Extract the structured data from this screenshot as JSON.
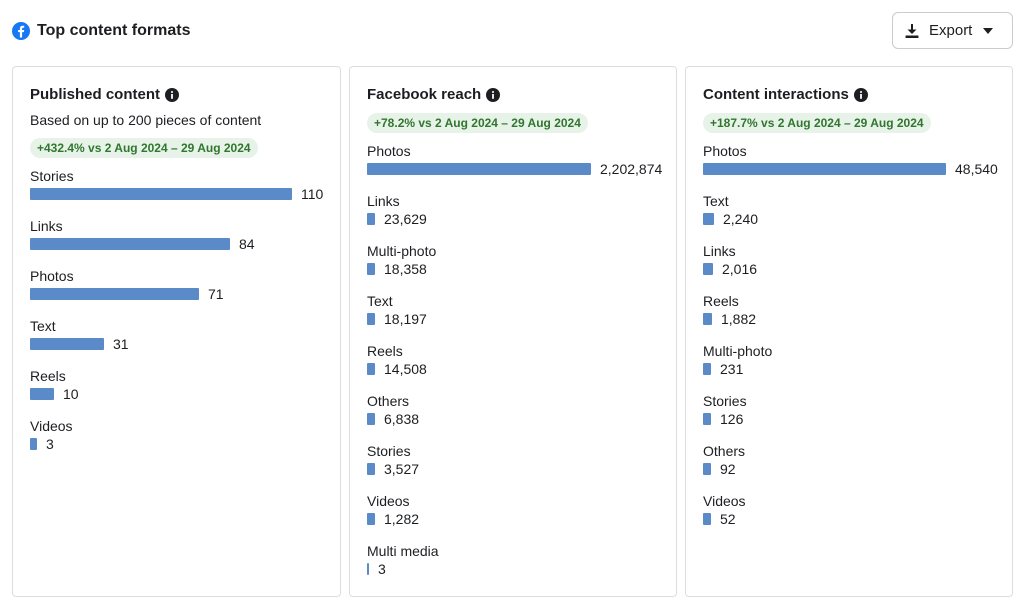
{
  "header": {
    "title": "Top content formats",
    "export_label": "Export",
    "brand_color": "#1877f2"
  },
  "cards": [
    {
      "title": "Published content",
      "subtitle": "Based on up to 200 pieces of content",
      "badge": "+432.4% vs 2 Aug 2024 – 29 Aug 2024",
      "rows": [
        {
          "label": "Stories",
          "value": 110,
          "display": "110"
        },
        {
          "label": "Links",
          "value": 84,
          "display": "84"
        },
        {
          "label": "Photos",
          "value": 71,
          "display": "71"
        },
        {
          "label": "Text",
          "value": 31,
          "display": "31"
        },
        {
          "label": "Reels",
          "value": 10,
          "display": "10"
        },
        {
          "label": "Videos",
          "value": 3,
          "display": "3"
        }
      ]
    },
    {
      "title": "Facebook reach",
      "subtitle": "",
      "badge": "+78.2% vs 2 Aug 2024 – 29 Aug 2024",
      "rows": [
        {
          "label": "Photos",
          "value": 2202874,
          "display": "2,202,874"
        },
        {
          "label": "Links",
          "value": 23629,
          "display": "23,629"
        },
        {
          "label": "Multi-photo",
          "value": 18358,
          "display": "18,358"
        },
        {
          "label": "Text",
          "value": 18197,
          "display": "18,197"
        },
        {
          "label": "Reels",
          "value": 14508,
          "display": "14,508"
        },
        {
          "label": "Others",
          "value": 6838,
          "display": "6,838"
        },
        {
          "label": "Stories",
          "value": 3527,
          "display": "3,527"
        },
        {
          "label": "Videos",
          "value": 1282,
          "display": "1,282"
        },
        {
          "label": "Multi media",
          "value": 3,
          "display": "3"
        }
      ]
    },
    {
      "title": "Content interactions",
      "subtitle": "",
      "badge": "+187.7% vs 2 Aug 2024 – 29 Aug 2024",
      "rows": [
        {
          "label": "Photos",
          "value": 48540,
          "display": "48,540"
        },
        {
          "label": "Text",
          "value": 2240,
          "display": "2,240"
        },
        {
          "label": "Links",
          "value": 2016,
          "display": "2,016"
        },
        {
          "label": "Reels",
          "value": 1882,
          "display": "1,882"
        },
        {
          "label": "Multi-photo",
          "value": 231,
          "display": "231"
        },
        {
          "label": "Stories",
          "value": 126,
          "display": "126"
        },
        {
          "label": "Others",
          "value": 92,
          "display": "92"
        },
        {
          "label": "Videos",
          "value": 52,
          "display": "52"
        }
      ]
    }
  ],
  "colors": {
    "bar": "#5b8ac9",
    "badge_bg": "#e7f3e8",
    "badge_text": "#31762f"
  }
}
